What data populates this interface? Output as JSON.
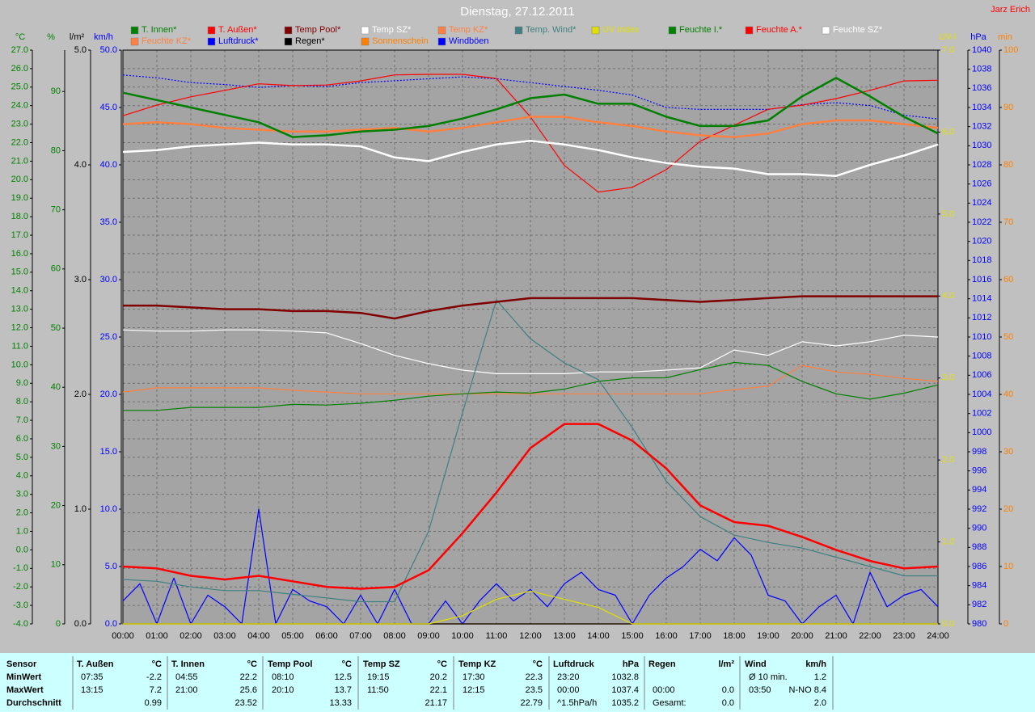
{
  "chart_data": {
    "type": "line",
    "title": "Dienstag, 27.12.2011",
    "author": "Jarz Erich",
    "grid": true,
    "xlim": [
      0,
      24
    ],
    "xticks": [
      {
        "value": 0,
        "label": "00:00"
      },
      {
        "value": 1,
        "label": "01:00"
      },
      {
        "value": 2,
        "label": "02:00"
      },
      {
        "value": 3,
        "label": "03:00"
      },
      {
        "value": 4,
        "label": "04:00"
      },
      {
        "value": 5,
        "label": "05:00"
      },
      {
        "value": 6,
        "label": "06:00"
      },
      {
        "value": 7,
        "label": "07:00"
      },
      {
        "value": 8,
        "label": "08:00"
      },
      {
        "value": 9,
        "label": "09:00"
      },
      {
        "value": 10,
        "label": "10:00"
      },
      {
        "value": 11,
        "label": "11:00"
      },
      {
        "value": 12,
        "label": "12:00"
      },
      {
        "value": 13,
        "label": "13:00"
      },
      {
        "value": 14,
        "label": "14:00"
      },
      {
        "value": 15,
        "label": "15:00"
      },
      {
        "value": 16,
        "label": "16:00"
      },
      {
        "value": 17,
        "label": "17:00"
      },
      {
        "value": 18,
        "label": "18:00"
      },
      {
        "value": 19,
        "label": "19:00"
      },
      {
        "value": 20,
        "label": "20:00"
      },
      {
        "value": 21,
        "label": "21:00"
      },
      {
        "value": 22,
        "label": "22:00"
      },
      {
        "value": 23,
        "label": "23:00"
      },
      {
        "value": 24,
        "label": "24:00"
      }
    ],
    "x": [
      0,
      1,
      2,
      3,
      4,
      5,
      6,
      7,
      8,
      9,
      10,
      11,
      12,
      13,
      14,
      15,
      16,
      17,
      18,
      19,
      20,
      21,
      22,
      23,
      24
    ],
    "axes": [
      {
        "label": "°C",
        "color": "#008000",
        "lim": [
          -4,
          27
        ],
        "ticks": [
          {
            "value": -4,
            "label": "-4.0"
          },
          {
            "value": -3,
            "label": "-3.0"
          },
          {
            "value": -2,
            "label": "-2.0"
          },
          {
            "value": -1,
            "label": "-1.0"
          },
          {
            "value": 0,
            "label": "0.0"
          },
          {
            "value": 1,
            "label": "1.0"
          },
          {
            "value": 2,
            "label": "2.0"
          },
          {
            "value": 3,
            "label": "3.0"
          },
          {
            "value": 4,
            "label": "4.0"
          },
          {
            "value": 5,
            "label": "5.0"
          },
          {
            "value": 6,
            "label": "6.0"
          },
          {
            "value": 7,
            "label": "7.0"
          },
          {
            "value": 8,
            "label": "8.0"
          },
          {
            "value": 9,
            "label": "9.0"
          },
          {
            "value": 10,
            "label": "10.0"
          },
          {
            "value": 11,
            "label": "11.0"
          },
          {
            "value": 12,
            "label": "12.0"
          },
          {
            "value": 13,
            "label": "13.0"
          },
          {
            "value": 14,
            "label": "14.0"
          },
          {
            "value": 15,
            "label": "15.0"
          },
          {
            "value": 16,
            "label": "16.0"
          },
          {
            "value": 17,
            "label": "17.0"
          },
          {
            "value": 18,
            "label": "18.0"
          },
          {
            "value": 19,
            "label": "19.0"
          },
          {
            "value": 20,
            "label": "20.0"
          },
          {
            "value": 21,
            "label": "21.0"
          },
          {
            "value": 22,
            "label": "22.0"
          },
          {
            "value": 23,
            "label": "23.0"
          },
          {
            "value": 24,
            "label": "24.0"
          },
          {
            "value": 25,
            "label": "25.0"
          },
          {
            "value": 26,
            "label": "26.0"
          },
          {
            "value": 27,
            "label": "27.0"
          }
        ]
      },
      {
        "label": "%",
        "color": "#008000",
        "lim": [
          0,
          97
        ],
        "ticks": [
          0,
          10,
          20,
          30,
          40,
          50,
          60,
          70,
          80,
          90
        ]
      },
      {
        "label": "l/m²",
        "color": "#000000",
        "lim": [
          0,
          5
        ],
        "ticks": [
          {
            "value": 0,
            "label": "0.0"
          },
          {
            "value": 1,
            "label": "1.0"
          },
          {
            "value": 2,
            "label": "2.0"
          },
          {
            "value": 3,
            "label": "3.0"
          },
          {
            "value": 4,
            "label": "4.0"
          },
          {
            "value": 5,
            "label": "5.0"
          }
        ]
      },
      {
        "label": "km/h",
        "color": "#0000ff",
        "lim": [
          0,
          50
        ],
        "ticks": [
          {
            "value": 0,
            "label": "0.0"
          },
          {
            "value": 5,
            "label": "5.0"
          },
          {
            "value": 10,
            "label": "10.0"
          },
          {
            "value": 15,
            "label": "15.0"
          },
          {
            "value": 20,
            "label": "20.0"
          },
          {
            "value": 25,
            "label": "25.0"
          },
          {
            "value": 30,
            "label": "30.0"
          },
          {
            "value": 35,
            "label": "35.0"
          },
          {
            "value": 40,
            "label": "40.0"
          },
          {
            "value": 45,
            "label": "45.0"
          },
          {
            "value": 50,
            "label": "50.0"
          }
        ]
      },
      {
        "label": "UV-I",
        "color": "#e0e000",
        "lim": [
          0,
          7
        ],
        "ticks": [
          {
            "value": 0,
            "label": "0.0"
          },
          {
            "value": 1,
            "label": "1.0"
          },
          {
            "value": 2,
            "label": "2.0"
          },
          {
            "value": 3,
            "label": "3.0"
          },
          {
            "value": 4,
            "label": "4.0"
          },
          {
            "value": 5,
            "label": "5.0"
          },
          {
            "value": 6,
            "label": "6.0"
          },
          {
            "value": 7,
            "label": "7.0"
          }
        ]
      },
      {
        "label": "hPa",
        "color": "#0000ff",
        "lim": [
          980,
          1040
        ],
        "ticks": [
          980,
          982,
          984,
          986,
          988,
          990,
          992,
          994,
          996,
          998,
          1000,
          1002,
          1004,
          1006,
          1008,
          1010,
          1012,
          1014,
          1016,
          1018,
          1020,
          1022,
          1024,
          1026,
          1028,
          1030,
          1032,
          1034,
          1036,
          1038,
          1040
        ]
      },
      {
        "label": "min",
        "color": "#ff8000",
        "lim": [
          0,
          100
        ],
        "ticks": [
          0,
          10,
          20,
          30,
          40,
          50,
          60,
          70,
          80,
          90,
          100
        ]
      }
    ],
    "series": [
      {
        "name": "T. Innen*",
        "color": "#008000",
        "axis": "°C",
        "line_style": "bold",
        "values": [
          24.7,
          24.3,
          23.9,
          23.5,
          23.1,
          22.3,
          22.4,
          22.6,
          22.7,
          22.9,
          23.3,
          23.8,
          24.4,
          24.6,
          24.1,
          24.1,
          23.4,
          22.9,
          22.9,
          23.2,
          24.5,
          25.5,
          24.5,
          23.4,
          22.5
        ]
      },
      {
        "name": "T. Außen*",
        "color": "#ff0000",
        "axis": "°C",
        "line_style": "bold",
        "values": [
          -0.9,
          -1.0,
          -1.4,
          -1.6,
          -1.4,
          -1.7,
          -2.0,
          -2.1,
          -2.0,
          -1.1,
          0.9,
          3.1,
          5.5,
          6.8,
          6.8,
          5.9,
          4.4,
          2.4,
          1.5,
          1.3,
          0.7,
          0.0,
          -0.6,
          -1.0,
          -0.9
        ]
      },
      {
        "name": "Temp Pool*",
        "color": "#800000",
        "axis": "°C",
        "line_style": "bold",
        "values": [
          13.2,
          13.2,
          13.1,
          13.0,
          13.0,
          12.9,
          12.9,
          12.8,
          12.5,
          12.9,
          13.2,
          13.4,
          13.6,
          13.6,
          13.6,
          13.6,
          13.5,
          13.4,
          13.5,
          13.6,
          13.7,
          13.7,
          13.7,
          13.7,
          13.7
        ]
      },
      {
        "name": "Temp SZ*",
        "color": "#ffffff",
        "axis": "°C",
        "line_style": "bold",
        "values": [
          21.5,
          21.6,
          21.8,
          21.9,
          22.0,
          21.9,
          21.9,
          21.8,
          21.2,
          21.0,
          21.5,
          21.9,
          22.1,
          21.9,
          21.6,
          21.2,
          20.9,
          20.7,
          20.6,
          20.3,
          20.3,
          20.2,
          20.8,
          21.3,
          21.9
        ]
      },
      {
        "name": "Temp KZ*",
        "color": "#ff8040",
        "axis": "°C",
        "line_style": "bold",
        "values": [
          23.0,
          23.1,
          23.0,
          22.8,
          22.7,
          22.6,
          22.6,
          22.7,
          22.8,
          22.6,
          22.8,
          23.1,
          23.4,
          23.4,
          23.1,
          22.9,
          22.6,
          22.4,
          22.3,
          22.5,
          23.0,
          23.2,
          23.2,
          23.0,
          22.8
        ]
      },
      {
        "name": "Temp. Wind*",
        "color": "#408080",
        "axis": "°C",
        "values": [
          -1.6,
          -1.7,
          -2.0,
          -2.2,
          -2.2,
          -2.4,
          -2.6,
          -2.8,
          -2.8,
          1.0,
          7.4,
          13.5,
          11.4,
          10.1,
          9.2,
          6.6,
          3.7,
          1.8,
          0.8,
          0.4,
          0.1,
          -0.4,
          -0.9,
          -1.4,
          -1.4
        ]
      },
      {
        "name": "UV Index",
        "color": "#e0e000",
        "axis": "UV-I",
        "values": [
          0,
          0,
          0,
          0,
          0,
          0,
          0,
          0,
          0,
          0,
          0.1,
          0.3,
          0.4,
          0.3,
          0.2,
          0,
          0,
          0,
          0,
          0,
          0,
          0,
          0,
          0,
          0
        ]
      },
      {
        "name": "Feuchte I.*",
        "color": "#008000",
        "axis": "%",
        "values": [
          36.1,
          36.1,
          36.6,
          36.6,
          36.6,
          37.1,
          37.0,
          37.3,
          37.8,
          38.5,
          38.9,
          39.2,
          39.0,
          39.7,
          41.0,
          41.6,
          41.6,
          43.0,
          44.2,
          43.7,
          41.0,
          38.9,
          38.0,
          39.0,
          40.4
        ]
      },
      {
        "name": "Feuchte A.*",
        "color": "#ff0000",
        "axis": "%",
        "values": [
          85.9,
          87.7,
          89.1,
          90.2,
          91.3,
          91.0,
          91.1,
          91.8,
          92.8,
          92.9,
          92.9,
          92.2,
          85.7,
          77.5,
          73.0,
          73.8,
          76.8,
          81.6,
          84.3,
          87.0,
          87.7,
          88.8,
          90.2,
          91.8,
          91.9
        ]
      },
      {
        "name": "Feuchte SZ*",
        "color": "#ffffff",
        "axis": "%",
        "values": [
          49.7,
          49.5,
          49.5,
          49.7,
          49.7,
          49.5,
          49.2,
          47.4,
          45.4,
          44.0,
          42.9,
          42.3,
          42.3,
          42.3,
          42.6,
          42.6,
          42.9,
          43.3,
          46.3,
          45.4,
          47.7,
          47.0,
          47.7,
          48.8,
          48.5
        ]
      },
      {
        "name": "Feuchte KZ*",
        "color": "#ff8040",
        "axis": "%",
        "values": [
          39.2,
          39.9,
          39.9,
          39.9,
          39.9,
          39.5,
          39.2,
          38.9,
          38.9,
          38.9,
          38.9,
          38.9,
          38.9,
          38.9,
          38.9,
          38.9,
          38.9,
          38.9,
          39.6,
          40.2,
          43.7,
          42.6,
          42.2,
          41.5,
          41.0
        ]
      },
      {
        "name": "Luftdruck*",
        "color": "#0000ff",
        "axis": "hPa",
        "line_style": "dotted",
        "values": [
          1037.4,
          1037.1,
          1036.6,
          1036.4,
          1036.1,
          1036.3,
          1036.2,
          1036.6,
          1036.8,
          1037.0,
          1037.2,
          1037.0,
          1036.6,
          1036.2,
          1035.8,
          1035.3,
          1034.0,
          1033.8,
          1033.8,
          1033.8,
          1034.3,
          1034.5,
          1034.2,
          1033.2,
          1032.8
        ]
      },
      {
        "name": "Regen*",
        "color": "#000000",
        "axis": "l/m²",
        "values": [
          0,
          0,
          0,
          0,
          0,
          0,
          0,
          0,
          0,
          0,
          0,
          0,
          0,
          0,
          0,
          0,
          0,
          0,
          0,
          0,
          0,
          0,
          0,
          0,
          0
        ]
      },
      {
        "name": "Sonnenschein",
        "color": "#ff8000",
        "axis": "min",
        "values": [
          0,
          0,
          0,
          0,
          0,
          0,
          0,
          0,
          0,
          0,
          0,
          0,
          0,
          0,
          0,
          0,
          0,
          0,
          0,
          0,
          0,
          0,
          0,
          0,
          0
        ]
      },
      {
        "name": "Windböen",
        "color": "#0000ff",
        "axis": "km/h",
        "x": [
          0,
          0.5,
          1,
          1.5,
          2,
          2.5,
          3,
          3.5,
          4,
          4.5,
          5,
          5.5,
          6,
          6.5,
          7,
          7.5,
          8,
          8.5,
          9,
          9.5,
          10,
          10.5,
          11,
          11.5,
          12,
          12.5,
          13,
          13.5,
          14,
          14.5,
          15,
          15.5,
          16,
          16.5,
          17,
          17.5,
          18,
          18.5,
          19,
          19.5,
          20,
          20.5,
          21,
          21.5,
          22,
          22.5,
          23,
          23.5,
          24
        ],
        "values": [
          2.0,
          3.5,
          0,
          4.0,
          0,
          2.5,
          1.5,
          0,
          10.0,
          0,
          3.0,
          2.0,
          1.5,
          0,
          2.5,
          0,
          3.0,
          0,
          0,
          2.0,
          0,
          2.0,
          3.5,
          2.0,
          3.0,
          1.5,
          3.5,
          4.5,
          3.0,
          2.5,
          0,
          2.5,
          4.0,
          5.0,
          6.5,
          5.5,
          7.5,
          6.0,
          2.5,
          2.0,
          0,
          1.5,
          2.5,
          0,
          4.5,
          1.5,
          2.5,
          3.0,
          1.5
        ]
      }
    ]
  },
  "table": {
    "header": [
      "Sensor",
      "T. Außen",
      "°C",
      "T. Innen",
      "°C",
      "Temp Pool",
      "°C",
      "Temp SZ",
      "°C",
      "Temp KZ",
      "°C",
      "Luftdruck",
      "hPa",
      "Regen",
      "l/m²",
      "Wind",
      "km/h"
    ],
    "rows": [
      {
        "label": "MinWert",
        "cells": [
          "07:35",
          "-2.2",
          "04:55",
          "22.2",
          "08:10",
          "12.5",
          "19:15",
          "20.2",
          "17:30",
          "22.3",
          "23:20",
          "1032.8",
          null,
          null,
          "Ø 10 min.",
          "1.2"
        ]
      },
      {
        "label": "MaxWert",
        "cells": [
          "13:15",
          "7.2",
          "21:00",
          "25.6",
          "20:10",
          "13.7",
          "11:50",
          "22.1",
          "12:15",
          "23.5",
          "00:00",
          "1037.4",
          "00:00",
          "0.0",
          "03:50",
          "N-NO 8.4"
        ]
      },
      {
        "label": "Durchschnitt",
        "cells": [
          null,
          "0.99",
          null,
          "23.52",
          null,
          "13.33",
          null,
          "21.17",
          null,
          "22.79",
          "^1.5hPa/h",
          "1035.2",
          "Gesamt:",
          "0.0",
          null,
          "2.0"
        ]
      }
    ]
  }
}
